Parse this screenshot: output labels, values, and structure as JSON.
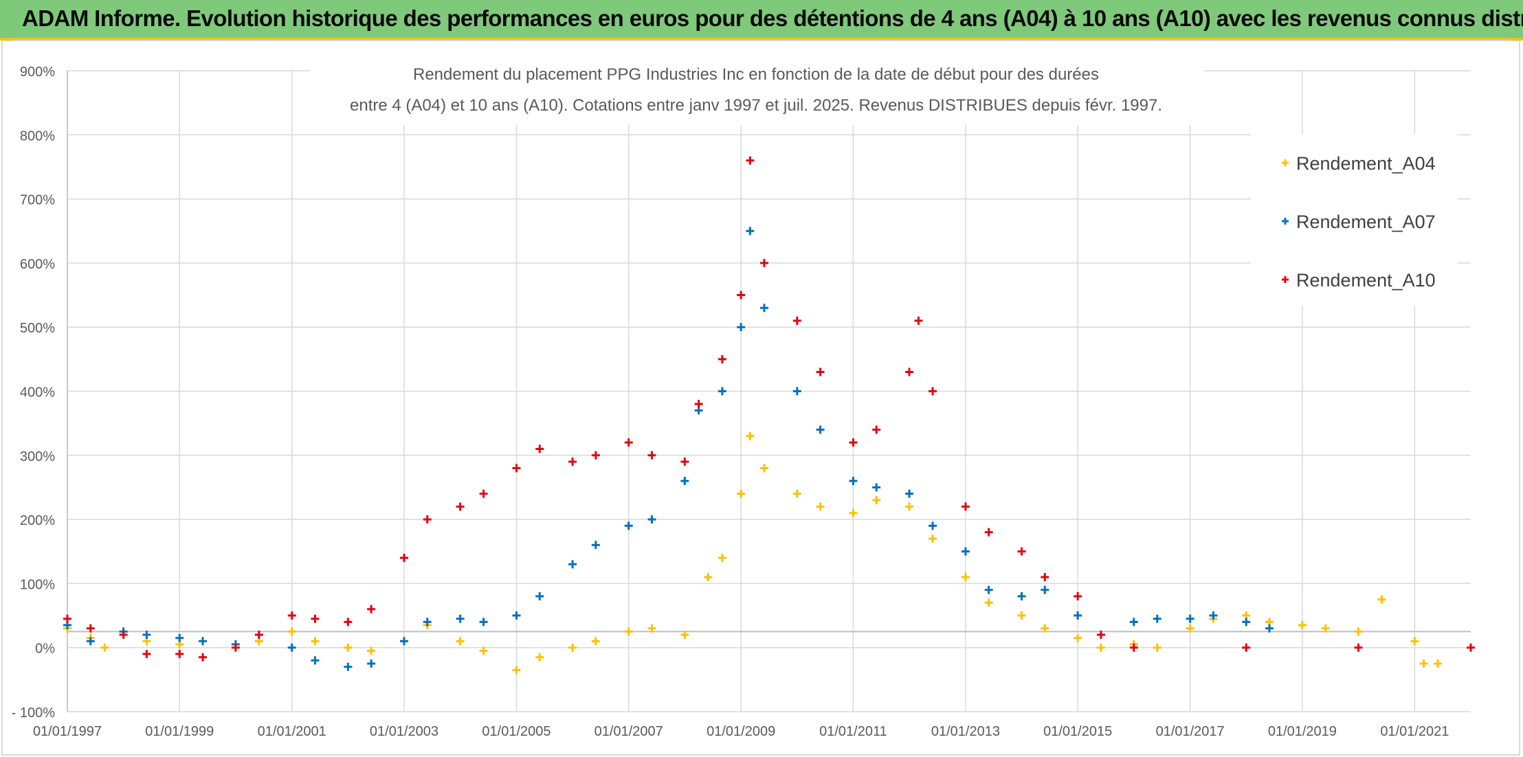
{
  "header": {
    "banner_title": "ADAM Informe. Evolution historique des performances en euros pour des détentions de 4 ans (A04) à 10 ans (A10) avec les revenus connus distribués"
  },
  "chart_data": {
    "type": "scatter",
    "title_line1": "Rendement du placement PPG Industries Inc en fonction de la date de début pour des durées",
    "title_line2": "entre 4 (A04) et 10 ans (A10). Cotations entre janv 1997 et juil. 2025. Revenus DISTRIBUES depuis févr. 1997.",
    "xlabel": "",
    "ylabel": "",
    "x_range": [
      "1997-01-01",
      "2022-01-01"
    ],
    "ylim": [
      -100,
      900
    ],
    "y_unit": "%",
    "y_ticks": [
      "900%",
      "800%",
      "700%",
      "600%",
      "500%",
      "400%",
      "300%",
      "200%",
      "100%",
      "0%",
      "- 100%"
    ],
    "x_ticks": [
      "01/01/1997",
      "01/01/1999",
      "01/01/2001",
      "01/01/2003",
      "01/01/2005",
      "01/01/2007",
      "01/01/2009",
      "01/01/2011",
      "01/01/2013",
      "01/01/2015",
      "01/01/2017",
      "01/01/2019",
      "01/01/2021"
    ],
    "grid": true,
    "legend_position": "top-right",
    "marker": "+",
    "series": [
      {
        "name": "Rendement_A04",
        "color": "#ffc000",
        "points": [
          [
            "1997-01-01",
            30
          ],
          [
            "1997-06-01",
            15
          ],
          [
            "1997-09-01",
            0
          ],
          [
            "1998-01-01",
            25
          ],
          [
            "1998-06-01",
            10
          ],
          [
            "1999-01-01",
            5
          ],
          [
            "1999-06-01",
            10
          ],
          [
            "2000-01-01",
            5
          ],
          [
            "2000-06-01",
            10
          ],
          [
            "2001-01-01",
            25
          ],
          [
            "2001-06-01",
            10
          ],
          [
            "2002-01-01",
            0
          ],
          [
            "2002-06-01",
            -5
          ],
          [
            "2003-01-01",
            10
          ],
          [
            "2003-06-01",
            35
          ],
          [
            "2004-01-01",
            10
          ],
          [
            "2004-06-01",
            -5
          ],
          [
            "2005-01-01",
            -35
          ],
          [
            "2005-06-01",
            -15
          ],
          [
            "2006-01-01",
            0
          ],
          [
            "2006-06-01",
            10
          ],
          [
            "2007-01-01",
            25
          ],
          [
            "2007-06-01",
            30
          ],
          [
            "2008-01-01",
            20
          ],
          [
            "2008-06-01",
            110
          ],
          [
            "2008-09-01",
            140
          ],
          [
            "2009-01-01",
            240
          ],
          [
            "2009-03-01",
            330
          ],
          [
            "2009-06-01",
            280
          ],
          [
            "2010-01-01",
            240
          ],
          [
            "2010-06-01",
            220
          ],
          [
            "2011-01-01",
            210
          ],
          [
            "2011-06-01",
            230
          ],
          [
            "2012-01-01",
            220
          ],
          [
            "2012-06-01",
            170
          ],
          [
            "2013-01-01",
            110
          ],
          [
            "2013-06-01",
            70
          ],
          [
            "2014-01-01",
            50
          ],
          [
            "2014-06-01",
            30
          ],
          [
            "2015-01-01",
            15
          ],
          [
            "2015-06-01",
            0
          ],
          [
            "2016-01-01",
            5
          ],
          [
            "2016-06-01",
            0
          ],
          [
            "2017-01-01",
            30
          ],
          [
            "2017-06-01",
            45
          ],
          [
            "2018-01-01",
            50
          ],
          [
            "2018-06-01",
            40
          ],
          [
            "2019-01-01",
            35
          ],
          [
            "2019-06-01",
            30
          ],
          [
            "2020-01-01",
            25
          ],
          [
            "2020-06-01",
            75
          ],
          [
            "2021-01-01",
            10
          ],
          [
            "2021-03-01",
            -25
          ],
          [
            "2021-06-01",
            -25
          ]
        ]
      },
      {
        "name": "Rendement_A07",
        "color": "#0070c0",
        "points": [
          [
            "1997-01-01",
            35
          ],
          [
            "1997-06-01",
            10
          ],
          [
            "1998-01-01",
            25
          ],
          [
            "1998-06-01",
            20
          ],
          [
            "1999-01-01",
            15
          ],
          [
            "1999-06-01",
            10
          ],
          [
            "2000-01-01",
            5
          ],
          [
            "2000-06-01",
            20
          ],
          [
            "2001-01-01",
            0
          ],
          [
            "2001-06-01",
            -20
          ],
          [
            "2002-01-01",
            -30
          ],
          [
            "2002-06-01",
            -25
          ],
          [
            "2003-01-01",
            10
          ],
          [
            "2003-06-01",
            40
          ],
          [
            "2004-01-01",
            45
          ],
          [
            "2004-06-01",
            40
          ],
          [
            "2005-01-01",
            50
          ],
          [
            "2005-06-01",
            80
          ],
          [
            "2006-01-01",
            130
          ],
          [
            "2006-06-01",
            160
          ],
          [
            "2007-01-01",
            190
          ],
          [
            "2007-06-01",
            200
          ],
          [
            "2008-01-01",
            260
          ],
          [
            "2008-04-01",
            370
          ],
          [
            "2008-09-01",
            400
          ],
          [
            "2009-01-01",
            500
          ],
          [
            "2009-03-01",
            650
          ],
          [
            "2009-06-01",
            530
          ],
          [
            "2010-01-01",
            400
          ],
          [
            "2010-06-01",
            340
          ],
          [
            "2011-01-01",
            260
          ],
          [
            "2011-06-01",
            250
          ],
          [
            "2012-01-01",
            240
          ],
          [
            "2012-06-01",
            190
          ],
          [
            "2013-01-01",
            150
          ],
          [
            "2013-06-01",
            90
          ],
          [
            "2014-01-01",
            80
          ],
          [
            "2014-06-01",
            90
          ],
          [
            "2015-01-01",
            50
          ],
          [
            "2015-06-01",
            20
          ],
          [
            "2016-01-01",
            40
          ],
          [
            "2016-06-01",
            45
          ],
          [
            "2017-01-01",
            45
          ],
          [
            "2017-06-01",
            50
          ],
          [
            "2018-01-01",
            40
          ],
          [
            "2018-06-01",
            30
          ]
        ]
      },
      {
        "name": "Rendement_A10",
        "color": "#e8000c",
        "points": [
          [
            "1997-01-01",
            45
          ],
          [
            "1997-06-01",
            30
          ],
          [
            "1998-01-01",
            20
          ],
          [
            "1998-06-01",
            -10
          ],
          [
            "1999-01-01",
            -10
          ],
          [
            "1999-06-01",
            -15
          ],
          [
            "2000-01-01",
            0
          ],
          [
            "2000-06-01",
            20
          ],
          [
            "2001-01-01",
            50
          ],
          [
            "2001-06-01",
            45
          ],
          [
            "2002-01-01",
            40
          ],
          [
            "2002-06-01",
            60
          ],
          [
            "2003-01-01",
            140
          ],
          [
            "2003-06-01",
            200
          ],
          [
            "2004-01-01",
            220
          ],
          [
            "2004-06-01",
            240
          ],
          [
            "2005-01-01",
            280
          ],
          [
            "2005-06-01",
            310
          ],
          [
            "2006-01-01",
            290
          ],
          [
            "2006-06-01",
            300
          ],
          [
            "2007-01-01",
            320
          ],
          [
            "2007-06-01",
            300
          ],
          [
            "2008-01-01",
            290
          ],
          [
            "2008-04-01",
            380
          ],
          [
            "2008-09-01",
            450
          ],
          [
            "2009-01-01",
            550
          ],
          [
            "2009-03-01",
            760
          ],
          [
            "2009-06-01",
            600
          ],
          [
            "2010-01-01",
            510
          ],
          [
            "2010-06-01",
            430
          ],
          [
            "2011-01-01",
            320
          ],
          [
            "2011-06-01",
            340
          ],
          [
            "2012-01-01",
            430
          ],
          [
            "2012-03-01",
            510
          ],
          [
            "2012-06-01",
            400
          ],
          [
            "2013-01-01",
            220
          ],
          [
            "2013-06-01",
            180
          ],
          [
            "2014-01-01",
            150
          ],
          [
            "2014-06-01",
            110
          ],
          [
            "2015-01-01",
            80
          ],
          [
            "2015-06-01",
            20
          ],
          [
            "2016-01-01",
            0
          ],
          [
            "2018-01-01",
            0
          ],
          [
            "2020-01-01",
            0
          ],
          [
            "2022-01-01",
            0
          ]
        ]
      }
    ]
  }
}
